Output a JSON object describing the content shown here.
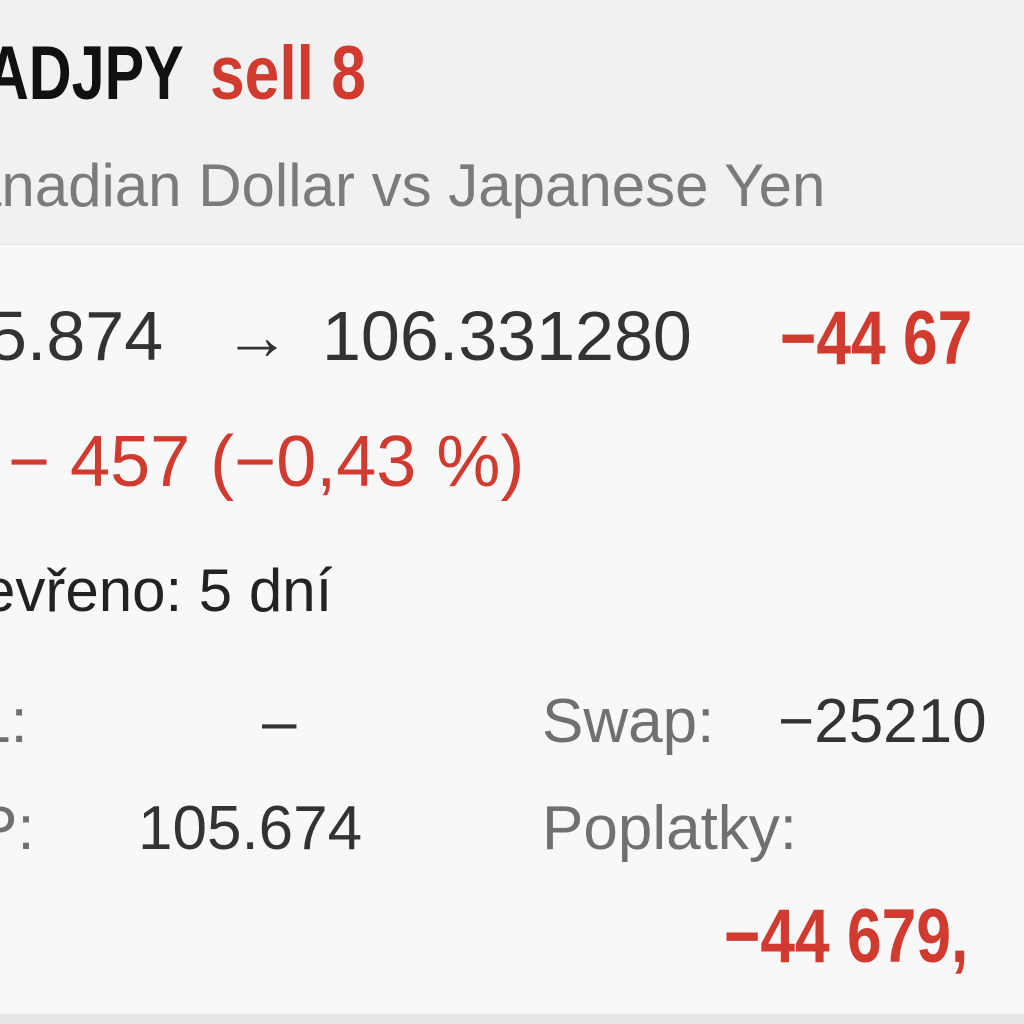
{
  "header": {
    "symbol": "ADJPY",
    "trade_action": "sell 8",
    "description": "anadian Dollar vs Japanese Yen"
  },
  "details": {
    "open_price": "5.874",
    "arrow": "→",
    "current_price": "106.331280",
    "profit_top": "−44 67",
    "change": "− 457 (−0,43 %)",
    "opened": "evřeno: 5 dní",
    "sl_label": "L:",
    "sl_value": "–",
    "swap_label": "Swap:",
    "swap_value": "−25210",
    "tp_label": "P:",
    "tp_value": "105.674",
    "fees_label": "Poplatky:",
    "profit_bottom": "−44 679,"
  },
  "colors": {
    "negative": "#d13a2f",
    "primary_text": "#333333",
    "secondary_text": "#707070",
    "symbol_text": "#111111"
  }
}
